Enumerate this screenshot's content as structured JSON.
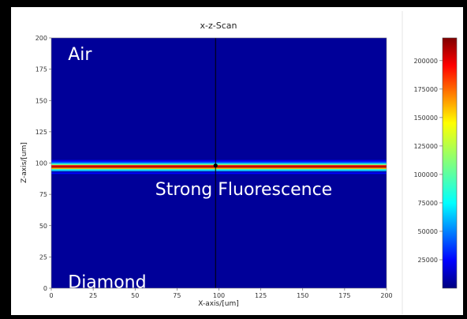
{
  "chart_data": {
    "type": "heatmap",
    "title": "x-z-Scan",
    "xlabel": "X-axis/[um]",
    "ylabel": "Z-axis/[um]",
    "xlim": [
      0,
      200
    ],
    "ylim": [
      0,
      200
    ],
    "x_ticks": [
      0,
      25,
      50,
      75,
      100,
      125,
      150,
      175,
      200
    ],
    "y_ticks": [
      0,
      25,
      50,
      75,
      100,
      125,
      150,
      175,
      200
    ],
    "colorbar": {
      "colormap": "jet",
      "range": [
        0,
        220000
      ],
      "ticks": [
        25000,
        50000,
        75000,
        100000,
        125000,
        150000,
        175000,
        200000
      ]
    },
    "background_level": 5000,
    "profile_z": [
      90,
      92,
      94,
      95,
      96,
      97,
      98,
      99,
      100,
      101,
      102,
      104
    ],
    "profile_values": [
      5000,
      25000,
      55000,
      90000,
      160000,
      215000,
      195000,
      110000,
      60000,
      35000,
      20000,
      5000
    ],
    "crosshair": {
      "x": 98,
      "z": 98
    },
    "annotations": [
      {
        "text": "Air",
        "x": 10,
        "z": 188
      },
      {
        "text": "Strong Fluorescence",
        "x": 62,
        "z": 80
      },
      {
        "text": "Diamond",
        "x": 10,
        "z": 6
      }
    ]
  }
}
